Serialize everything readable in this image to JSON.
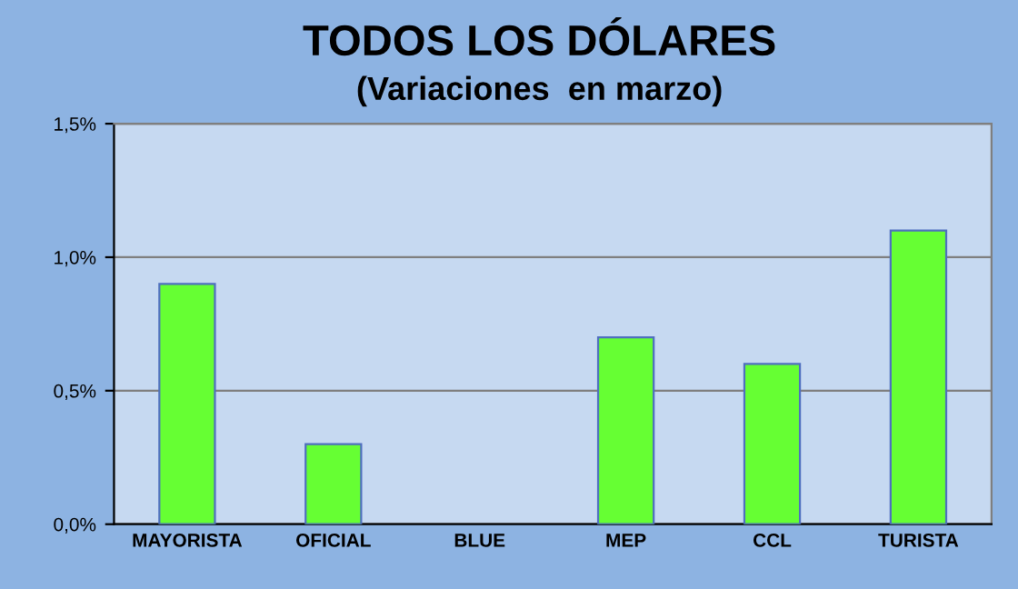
{
  "chart_data": {
    "type": "bar",
    "title": "TODOS LOS DÓLARES",
    "subtitle": "(Variaciones  en marzo)",
    "categories": [
      "MAYORISTA",
      "OFICIAL",
      "BLUE",
      "MEP",
      "CCL",
      "TURISTA"
    ],
    "values": [
      0.9,
      0.3,
      0,
      0.7,
      0.6,
      1.1
    ],
    "color": "#66ff33",
    "ylim": [
      0,
      1.5
    ],
    "yticks": [
      {
        "value": 0,
        "label": "0,0%"
      },
      {
        "value": 0.5,
        "label": "0,5%"
      },
      {
        "value": 1.0,
        "label": "1,0%"
      },
      {
        "value": 1.5,
        "label": "1,5%"
      }
    ],
    "grid": "y",
    "legend": false
  }
}
